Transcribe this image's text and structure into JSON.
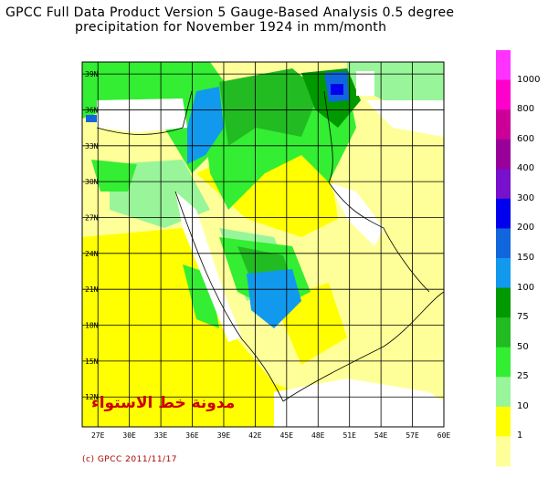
{
  "title": {
    "line1": "GPCC Full Data Product Version 5 Gauge-Based Analysis 0.5 degree",
    "line2": "precipitation for November  1924 in mm/month"
  },
  "map": {
    "lon_labels": [
      "27E",
      "30E",
      "33E",
      "36E",
      "39E",
      "42E",
      "45E",
      "48E",
      "51E",
      "54E",
      "57E",
      "60E"
    ],
    "lat_labels": [
      "39N",
      "36N",
      "33N",
      "30N",
      "27N",
      "24N",
      "21N",
      "18N",
      "15N",
      "12N"
    ],
    "lon_range": [
      25.5,
      60
    ],
    "lat_range": [
      9.5,
      40
    ]
  },
  "colorbar": {
    "labels": [
      "1000",
      "800",
      "600",
      "400",
      "300",
      "200",
      "150",
      "100",
      "75",
      "50",
      "25",
      "10",
      "1"
    ],
    "colors": [
      "#ff33ff",
      "#ff00cc",
      "#cc0099",
      "#990099",
      "#7711cc",
      "#0000ee",
      "#1166dd",
      "#1199ee",
      "#009900",
      "#22bb22",
      "#33ee33",
      "#99f599",
      "#ffff00",
      "#ffff99"
    ]
  },
  "watermark": "مدونة خط الاستواء",
  "credit": "(c) GPCC 2011/11/17"
}
